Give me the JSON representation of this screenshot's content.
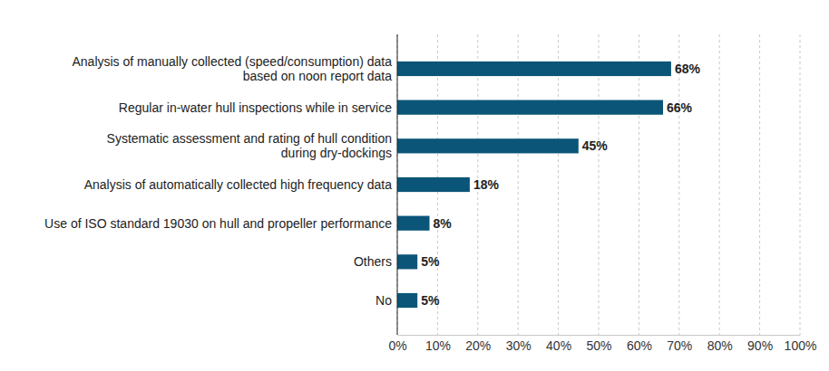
{
  "chart_data": {
    "type": "bar",
    "orientation": "horizontal",
    "categories": [
      "Analysis of manually collected (speed/consumption) data\nbased on noon report data",
      "Regular in-water hull inspections while in service",
      "Systematic assessment and rating of hull condition\nduring dry-dockings",
      "Analysis of automatically collected high frequency data",
      "Use of ISO standard 19030 on hull and propeller performance",
      "Others",
      "No"
    ],
    "values": [
      68,
      66,
      45,
      18,
      8,
      5,
      5
    ],
    "value_labels": [
      "68%",
      "66%",
      "45%",
      "18%",
      "8%",
      "5%",
      "5%"
    ],
    "data_labels": true,
    "color": "#0b5578",
    "xlim": [
      0,
      100
    ],
    "xticks": [
      {
        "value": 0,
        "label": "0%"
      },
      {
        "value": 10,
        "label": "10%"
      },
      {
        "value": 20,
        "label": "20%"
      },
      {
        "value": 30,
        "label": "30%"
      },
      {
        "value": 40,
        "label": "40%"
      },
      {
        "value": 50,
        "label": "50%"
      },
      {
        "value": 60,
        "label": "60%"
      },
      {
        "value": 70,
        "label": "70%"
      },
      {
        "value": 80,
        "label": "80%"
      },
      {
        "value": 90,
        "label": "90%"
      },
      {
        "value": 100,
        "label": "100%"
      }
    ],
    "grid": true
  }
}
